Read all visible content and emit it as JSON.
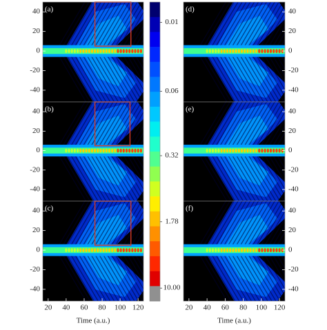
{
  "chart_data": [
    {
      "type": "heatmap",
      "label": "(a)",
      "xlim": [
        14,
        126
      ],
      "ylim": [
        -52,
        50
      ],
      "yticks": [
        -40,
        -20,
        0,
        20,
        40
      ],
      "highlight_box": {
        "x": [
          72,
          112
        ],
        "y": [
          5,
          50
        ]
      }
    },
    {
      "type": "heatmap",
      "label": "(b)",
      "xlim": [
        14,
        126
      ],
      "ylim": [
        -52,
        50
      ],
      "yticks": [
        -40,
        -20,
        0,
        20,
        40
      ],
      "highlight_box": {
        "x": [
          72,
          111
        ],
        "y": [
          5,
          50
        ]
      }
    },
    {
      "type": "heatmap",
      "label": "(c)",
      "xlim": [
        14,
        126
      ],
      "ylim": [
        -52,
        50
      ],
      "xticks": [
        20,
        40,
        60,
        80,
        100,
        120
      ],
      "yticks": [
        -40,
        -20,
        0,
        20,
        40
      ],
      "xlabel": "Time (a.u.)",
      "highlight_box": {
        "x": [
          72,
          112
        ],
        "y": [
          5,
          50
        ]
      }
    },
    {
      "type": "heatmap",
      "label": "(d)",
      "xlim": [
        14,
        126
      ],
      "ylim": [
        -52,
        50
      ],
      "yticks": [
        -40,
        -20,
        0,
        20,
        40
      ]
    },
    {
      "type": "heatmap",
      "label": "(e)",
      "xlim": [
        14,
        126
      ],
      "ylim": [
        -52,
        50
      ],
      "yticks": [
        -40,
        -20,
        0,
        20,
        40
      ]
    },
    {
      "type": "heatmap",
      "label": "(f)",
      "xlim": [
        14,
        126
      ],
      "ylim": [
        -52,
        50
      ],
      "xticks": [
        20,
        40,
        60,
        80,
        100,
        120
      ],
      "yticks": [
        -40,
        -20,
        0,
        20,
        40
      ],
      "xlabel": "Time (a.u.)"
    },
    {
      "type": "colorbar",
      "log_scale": true,
      "ylim": [
        0.0059,
        14
      ],
      "yticks": [
        0.01,
        0.06,
        0.32,
        1.78,
        {
          "value": 10,
          "label": "10.00"
        }
      ],
      "colors": [
        "#00006e",
        "#0000b4",
        "#0000f0",
        "#0028ff",
        "#0050ff",
        "#0078ff",
        "#00a0ff",
        "#00c8ff",
        "#00eef0",
        "#20ffcc",
        "#50ff90",
        "#90ff50",
        "#d0ff20",
        "#ffee00",
        "#ffc000",
        "#ff9000",
        "#ff5a00",
        "#ff2800",
        "#e00000",
        "#909090"
      ]
    }
  ]
}
